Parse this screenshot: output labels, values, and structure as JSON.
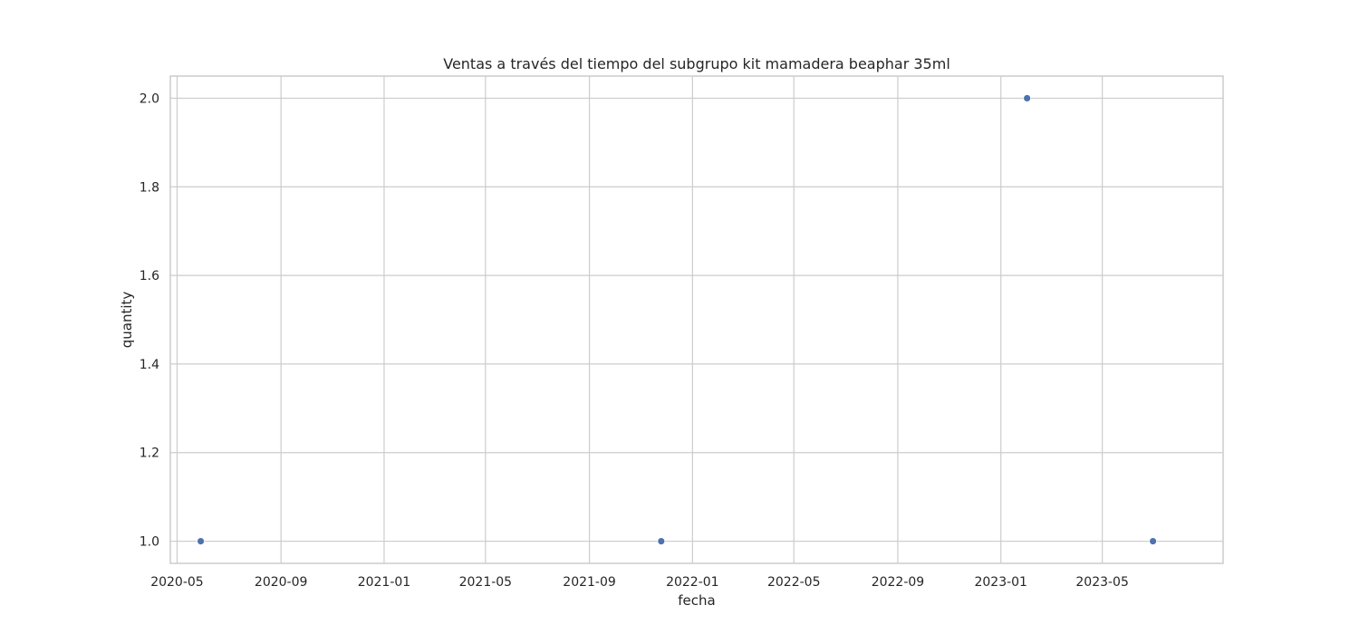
{
  "chart_data": {
    "type": "scatter",
    "title": "Ventas a través del tiempo del subgrupo kit mamadera beaphar 35ml",
    "xlabel": "fecha",
    "ylabel": "quantity",
    "x_ticks": [
      "2020-05",
      "2020-09",
      "2021-01",
      "2021-05",
      "2021-09",
      "2022-01",
      "2022-05",
      "2022-09",
      "2023-01",
      "2023-05"
    ],
    "y_ticks": [
      "1.0",
      "1.2",
      "1.4",
      "1.6",
      "1.8",
      "2.0"
    ],
    "xlim": [
      "2020-04-23",
      "2023-09-21"
    ],
    "ylim": [
      0.95,
      2.05
    ],
    "grid": true,
    "marker_color": "#4c72b0",
    "points": [
      {
        "x": "2020-05-29",
        "y": 1
      },
      {
        "x": "2021-11-25",
        "y": 1
      },
      {
        "x": "2023-02-01",
        "y": 2
      },
      {
        "x": "2023-06-30",
        "y": 1
      }
    ]
  }
}
